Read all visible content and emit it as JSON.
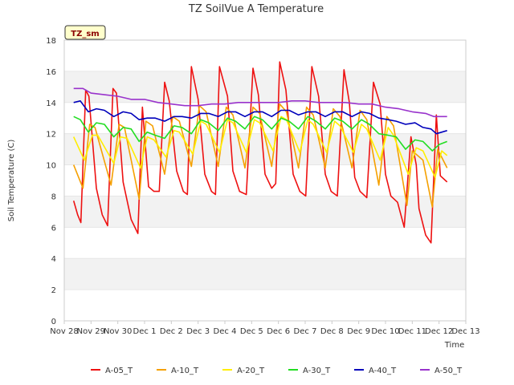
{
  "chart_data": {
    "type": "line",
    "title": "TZ SoilVue A Temperature",
    "badge": "TZ_sm",
    "xlabel": "Time",
    "ylabel": "Soil Temperature (C)",
    "xlim": [
      0,
      15
    ],
    "ylim": [
      0,
      18
    ],
    "x_tick_labels": [
      "Nov 28",
      "Nov 29",
      "Nov 30",
      "Dec 1",
      "Dec 2",
      "Dec 3",
      "Dec 4",
      "Dec 5",
      "Dec 6",
      "Dec 7",
      "Dec 8",
      "Dec 9",
      "Dec 10",
      "Dec 11",
      "Dec 12",
      "Dec 13"
    ],
    "y_ticks": [
      0,
      2,
      4,
      6,
      8,
      10,
      12,
      14,
      16,
      18
    ],
    "grid": "horizontal bands",
    "legend_position": "bottom",
    "series": [
      {
        "name": "A-05_T",
        "color": "#ee1111",
        "x": [
          0.35,
          0.5,
          0.62,
          0.8,
          0.92,
          1.2,
          1.42,
          1.62,
          1.82,
          1.95,
          2.2,
          2.5,
          2.75,
          2.92,
          3.15,
          3.35,
          3.55,
          3.75,
          3.92,
          4.2,
          4.45,
          4.6,
          4.75,
          5.0,
          5.25,
          5.5,
          5.65,
          5.8,
          6.1,
          6.3,
          6.55,
          6.8,
          7.05,
          7.25,
          7.5,
          7.75,
          7.9,
          8.05,
          8.28,
          8.55,
          8.8,
          9.02,
          9.25,
          9.5,
          9.75,
          9.97,
          10.2,
          10.45,
          10.65,
          10.85,
          11.05,
          11.3,
          11.55,
          11.8,
          12.0,
          12.2,
          12.45,
          12.7,
          12.95,
          13.15,
          13.25,
          13.5,
          13.7,
          13.9,
          14.05,
          14.3
        ],
        "y": [
          7.7,
          6.8,
          6.3,
          14.8,
          14.4,
          8.5,
          6.8,
          6.1,
          14.9,
          14.6,
          8.9,
          6.5,
          5.6,
          13.7,
          8.6,
          8.3,
          8.3,
          15.3,
          14.1,
          9.6,
          8.3,
          8.1,
          16.3,
          14.2,
          9.4,
          8.3,
          8.1,
          16.3,
          14.4,
          9.6,
          8.3,
          8.1,
          16.2,
          14.5,
          9.4,
          8.5,
          8.8,
          16.6,
          14.8,
          9.4,
          8.3,
          8.0,
          16.3,
          14.4,
          9.4,
          8.3,
          8.0,
          16.1,
          14.0,
          9.2,
          8.3,
          7.9,
          15.3,
          13.9,
          9.4,
          8.0,
          7.6,
          6.0,
          11.8,
          10.0,
          7.2,
          5.5,
          5.0,
          13.2,
          9.3,
          8.9
        ]
      },
      {
        "name": "A-10_T",
        "color": "#f5a000",
        "x": [
          0.35,
          0.7,
          0.95,
          1.15,
          1.75,
          2.05,
          2.25,
          2.8,
          3.05,
          3.3,
          3.75,
          4.05,
          4.3,
          4.75,
          5.05,
          5.3,
          5.75,
          6.05,
          6.3,
          6.75,
          7.05,
          7.3,
          7.75,
          8.05,
          8.3,
          8.75,
          9.05,
          9.3,
          9.75,
          10.05,
          10.3,
          10.75,
          11.05,
          11.3,
          11.75,
          12.05,
          12.3,
          12.8,
          13.0,
          13.4,
          13.75,
          13.95,
          14.3
        ],
        "y": [
          10.0,
          8.5,
          12.6,
          12.4,
          8.7,
          12.6,
          12.4,
          7.8,
          12.8,
          12.5,
          9.4,
          13.1,
          12.8,
          9.9,
          13.8,
          13.4,
          9.9,
          13.7,
          13.2,
          9.8,
          13.7,
          13.3,
          9.9,
          13.9,
          13.4,
          9.8,
          13.7,
          13.2,
          9.8,
          13.6,
          13.1,
          9.8,
          13.5,
          12.9,
          8.7,
          13.1,
          12.5,
          7.4,
          10.9,
          10.3,
          7.3,
          11.0,
          9.8
        ]
      },
      {
        "name": "A-20_T",
        "color": "#ffee00",
        "x": [
          0.35,
          0.75,
          1.05,
          1.25,
          1.85,
          2.1,
          2.35,
          2.85,
          3.1,
          3.35,
          3.8,
          4.1,
          4.3,
          4.8,
          5.1,
          5.3,
          5.8,
          6.1,
          6.3,
          6.8,
          7.1,
          7.3,
          7.8,
          8.1,
          8.3,
          8.8,
          9.1,
          9.3,
          9.8,
          10.1,
          10.3,
          10.8,
          11.1,
          11.3,
          11.8,
          12.1,
          12.3,
          12.85,
          13.15,
          13.4,
          13.85,
          14.1,
          14.3
        ],
        "y": [
          11.8,
          10.3,
          11.9,
          11.9,
          10.1,
          11.8,
          11.7,
          9.8,
          11.8,
          11.6,
          10.5,
          12.2,
          12.1,
          10.7,
          12.8,
          12.6,
          10.8,
          12.9,
          12.7,
          10.8,
          12.9,
          12.7,
          10.9,
          13.1,
          12.9,
          10.8,
          12.9,
          12.6,
          10.8,
          12.8,
          12.5,
          10.8,
          12.6,
          12.3,
          10.3,
          12.4,
          11.9,
          9.4,
          11.1,
          10.9,
          9.2,
          10.9,
          10.6
        ]
      },
      {
        "name": "A-30_T",
        "color": "#22dd22",
        "x": [
          0.35,
          0.6,
          0.9,
          1.2,
          1.5,
          1.85,
          2.2,
          2.5,
          2.8,
          3.1,
          3.4,
          3.75,
          4.1,
          4.4,
          4.75,
          5.1,
          5.4,
          5.75,
          6.1,
          6.4,
          6.75,
          7.1,
          7.4,
          7.75,
          8.1,
          8.4,
          8.75,
          9.1,
          9.4,
          9.75,
          10.1,
          10.4,
          10.75,
          11.1,
          11.4,
          11.75,
          12.1,
          12.4,
          12.75,
          13.1,
          13.4,
          13.75,
          14.0,
          14.3
        ],
        "y": [
          13.1,
          12.9,
          12.1,
          12.7,
          12.6,
          11.8,
          12.4,
          12.3,
          11.5,
          12.1,
          11.9,
          11.7,
          12.5,
          12.4,
          12.0,
          12.9,
          12.7,
          12.2,
          13.0,
          12.8,
          12.3,
          13.1,
          12.9,
          12.3,
          13.0,
          12.8,
          12.3,
          13.1,
          12.8,
          12.3,
          13.0,
          12.8,
          12.3,
          12.9,
          12.6,
          12.0,
          11.9,
          11.8,
          11.0,
          11.6,
          11.5,
          10.9,
          11.3,
          11.5
        ]
      },
      {
        "name": "A-40_T",
        "color": "#0000bb",
        "x": [
          0.35,
          0.6,
          0.9,
          1.2,
          1.5,
          1.85,
          2.2,
          2.5,
          2.8,
          3.1,
          3.4,
          3.75,
          4.1,
          4.4,
          4.75,
          5.1,
          5.4,
          5.75,
          6.1,
          6.4,
          6.75,
          7.1,
          7.4,
          7.75,
          8.1,
          8.4,
          8.75,
          9.1,
          9.4,
          9.75,
          10.1,
          10.4,
          10.75,
          11.1,
          11.4,
          11.75,
          12.1,
          12.4,
          12.75,
          13.1,
          13.4,
          13.7,
          13.9,
          14.3
        ],
        "y": [
          14.0,
          14.1,
          13.4,
          13.6,
          13.5,
          13.1,
          13.4,
          13.3,
          12.9,
          13.0,
          13.0,
          12.8,
          13.1,
          13.1,
          13.0,
          13.3,
          13.3,
          13.1,
          13.4,
          13.4,
          13.1,
          13.4,
          13.4,
          13.1,
          13.5,
          13.5,
          13.2,
          13.4,
          13.4,
          13.1,
          13.4,
          13.4,
          13.1,
          13.4,
          13.3,
          13.0,
          12.9,
          12.8,
          12.6,
          12.7,
          12.4,
          12.3,
          12.0,
          12.2
        ]
      },
      {
        "name": "A-50_T",
        "color": "#9933cc",
        "x": [
          0.35,
          0.7,
          1.0,
          1.5,
          2.0,
          2.5,
          3.0,
          3.5,
          4.0,
          4.5,
          5.0,
          5.5,
          6.0,
          6.5,
          7.0,
          7.5,
          8.0,
          8.5,
          9.0,
          9.5,
          10.0,
          10.5,
          11.0,
          11.5,
          12.0,
          12.5,
          13.0,
          13.5,
          13.8,
          14.3
        ],
        "y": [
          14.9,
          14.9,
          14.6,
          14.5,
          14.4,
          14.2,
          14.2,
          14.0,
          13.9,
          13.8,
          13.8,
          13.9,
          13.9,
          14.0,
          14.0,
          14.0,
          14.0,
          14.1,
          14.1,
          14.0,
          14.0,
          14.0,
          13.9,
          13.9,
          13.7,
          13.6,
          13.4,
          13.3,
          13.1,
          13.1
        ]
      }
    ]
  }
}
